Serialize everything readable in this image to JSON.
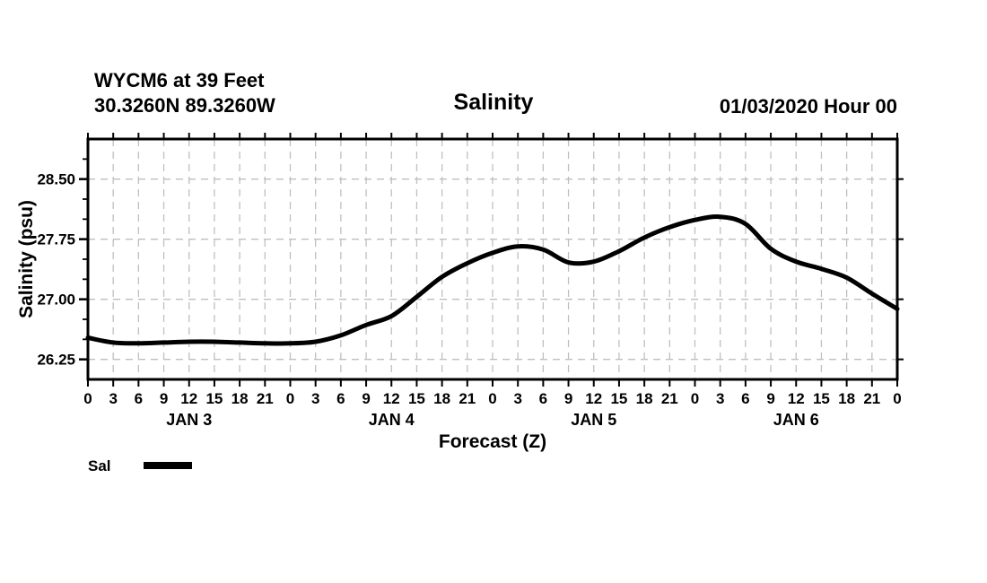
{
  "header": {
    "station_line1": "WYCM6 at 39 Feet",
    "station_line2": "30.3260N 89.3260W",
    "title": "Salinity",
    "run_datetime": "01/03/2020 Hour 00"
  },
  "axes": {
    "y_title": "Salinity (psu)",
    "x_title": "Forecast (Z)"
  },
  "legend": {
    "label": "Sal"
  },
  "chart_data": {
    "type": "line",
    "title": "Salinity",
    "xlabel": "Forecast (Z)",
    "ylabel": "Salinity (psu)",
    "x_hours": [
      0,
      3,
      6,
      9,
      12,
      15,
      18,
      21,
      24,
      27,
      30,
      33,
      36,
      39,
      42,
      45,
      48,
      51,
      54,
      57,
      60,
      63,
      66,
      69,
      72,
      75,
      78,
      81,
      84,
      87,
      90,
      93,
      96
    ],
    "series": [
      {
        "name": "Sal",
        "color": "#000000",
        "values": [
          26.52,
          26.46,
          26.45,
          26.46,
          26.47,
          26.47,
          26.46,
          26.45,
          26.45,
          26.47,
          26.55,
          26.68,
          26.79,
          27.03,
          27.28,
          27.45,
          27.58,
          27.66,
          27.62,
          27.46,
          27.47,
          27.6,
          27.77,
          27.9,
          27.99,
          28.03,
          27.94,
          27.63,
          27.47,
          27.38,
          27.27,
          27.07,
          26.88
        ]
      }
    ],
    "xlim_hours": [
      0,
      96
    ],
    "ylim": [
      26.0,
      29.0
    ],
    "x_tick_step_hours": 3,
    "x_tick_label_mod": 24,
    "day_labels": [
      "JAN 3",
      "JAN 4",
      "JAN 5",
      "JAN 6"
    ],
    "y_ticks_major": [
      26.25,
      27.0,
      27.75,
      28.5
    ],
    "y_tick_labels": [
      "26.25",
      "27.00",
      "27.75",
      "28.50"
    ],
    "y_minor_step": 0.25,
    "grid": "dashed",
    "grid_color": "#bfbfbf",
    "frame_color": "#000000",
    "legend_label": "Sal",
    "legend_position": "bottom-left"
  }
}
